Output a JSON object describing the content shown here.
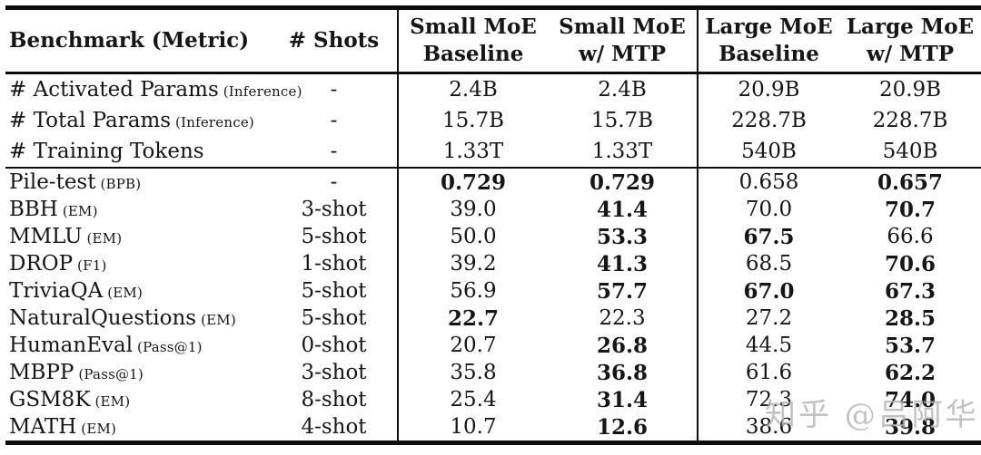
{
  "table": {
    "type": "table",
    "headers": {
      "benchmark": "Benchmark (Metric)",
      "shots": "# Shots",
      "cols": [
        {
          "line1": "Small MoE",
          "line2": "Baseline"
        },
        {
          "line1": "Small MoE",
          "line2": "w/ MTP"
        },
        {
          "line1": "Large MoE",
          "line2": "Baseline"
        },
        {
          "line1": "Large MoE",
          "line2": "w/ MTP"
        }
      ]
    },
    "param_rows": [
      {
        "benchmark": "# Activated Params",
        "metric": "(Inference)",
        "shots": "-",
        "values": [
          "2.4B",
          "2.4B",
          "20.9B",
          "20.9B"
        ],
        "bold": [
          false,
          false,
          false,
          false
        ]
      },
      {
        "benchmark": "# Total Params",
        "metric": "(Inference)",
        "shots": "-",
        "values": [
          "15.7B",
          "15.7B",
          "228.7B",
          "228.7B"
        ],
        "bold": [
          false,
          false,
          false,
          false
        ]
      },
      {
        "benchmark": "# Training Tokens",
        "metric": "",
        "shots": "-",
        "values": [
          "1.33T",
          "1.33T",
          "540B",
          "540B"
        ],
        "bold": [
          false,
          false,
          false,
          false
        ]
      }
    ],
    "benchmark_rows": [
      {
        "benchmark": "Pile-test",
        "metric": "(BPB)",
        "shots": "-",
        "values": [
          "0.729",
          "0.729",
          "0.658",
          "0.657"
        ],
        "bold": [
          true,
          true,
          false,
          true
        ]
      },
      {
        "benchmark": "BBH",
        "metric": "(EM)",
        "shots": "3-shot",
        "values": [
          "39.0",
          "41.4",
          "70.0",
          "70.7"
        ],
        "bold": [
          false,
          true,
          false,
          true
        ]
      },
      {
        "benchmark": "MMLU",
        "metric": "(EM)",
        "shots": "5-shot",
        "values": [
          "50.0",
          "53.3",
          "67.5",
          "66.6"
        ],
        "bold": [
          false,
          true,
          true,
          false
        ]
      },
      {
        "benchmark": "DROP",
        "metric": "(F1)",
        "shots": "1-shot",
        "values": [
          "39.2",
          "41.3",
          "68.5",
          "70.6"
        ],
        "bold": [
          false,
          true,
          false,
          true
        ]
      },
      {
        "benchmark": "TriviaQA",
        "metric": "(EM)",
        "shots": "5-shot",
        "values": [
          "56.9",
          "57.7",
          "67.0",
          "67.3"
        ],
        "bold": [
          false,
          true,
          true,
          true
        ]
      },
      {
        "benchmark": "NaturalQuestions",
        "metric": "(EM)",
        "shots": "5-shot",
        "values": [
          "22.7",
          "22.3",
          "27.2",
          "28.5"
        ],
        "bold": [
          true,
          false,
          false,
          true
        ]
      },
      {
        "benchmark": "HumanEval",
        "metric": "(Pass@1)",
        "shots": "0-shot",
        "values": [
          "20.7",
          "26.8",
          "44.5",
          "53.7"
        ],
        "bold": [
          false,
          true,
          false,
          true
        ]
      },
      {
        "benchmark": "MBPP",
        "metric": "(Pass@1)",
        "shots": "3-shot",
        "values": [
          "35.8",
          "36.8",
          "61.6",
          "62.2"
        ],
        "bold": [
          false,
          true,
          false,
          true
        ]
      },
      {
        "benchmark": "GSM8K",
        "metric": "(EM)",
        "shots": "8-shot",
        "values": [
          "25.4",
          "31.4",
          "72.3",
          "74.0"
        ],
        "bold": [
          false,
          true,
          false,
          true
        ]
      },
      {
        "benchmark": "MATH",
        "metric": "(EM)",
        "shots": "4-shot",
        "values": [
          "10.7",
          "12.6",
          "38.6",
          "39.8"
        ],
        "bold": [
          false,
          true,
          false,
          true
        ]
      }
    ]
  },
  "watermark": {
    "text": "知乎 @吕阿华"
  }
}
